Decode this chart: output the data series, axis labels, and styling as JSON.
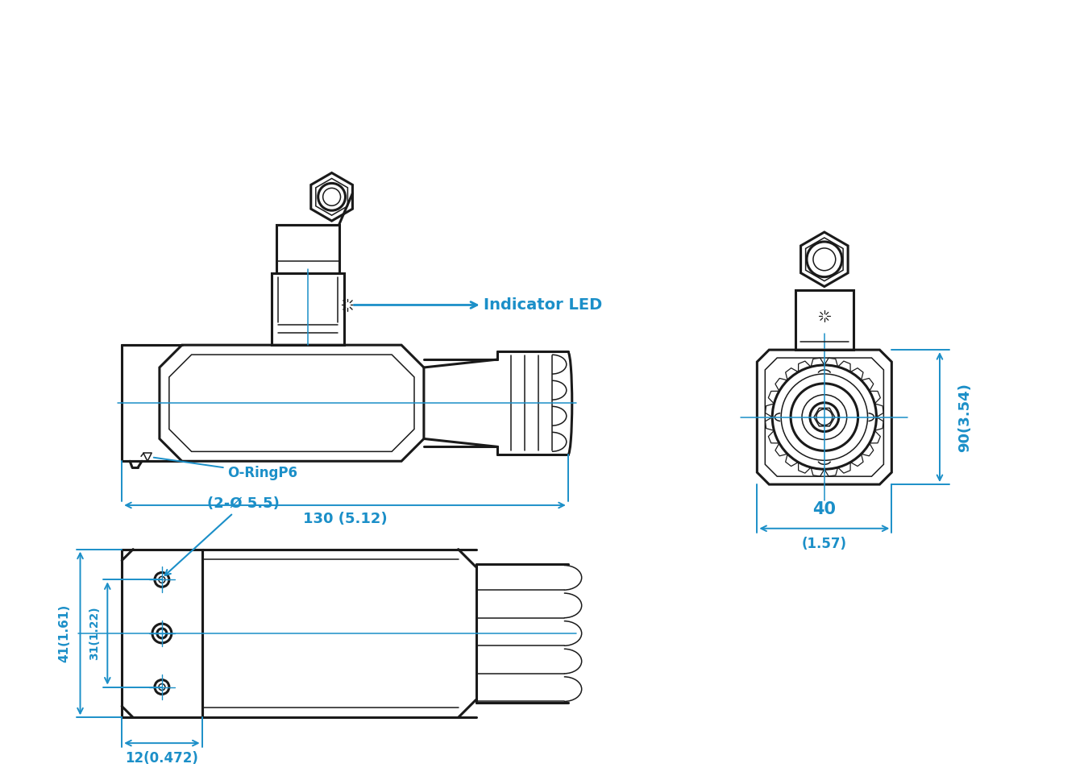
{
  "bg_color": "#FFFFFF",
  "line_color": "#1a1a1a",
  "dim_color": "#1B8FC8",
  "dim_130": "130 (5.12)",
  "dim_40": "40",
  "dim_40b": "(1.57)",
  "dim_90": "90(3.54)",
  "dim_31": "31(1.22)",
  "dim_41": "41(1.61)",
  "dim_12": "12(0.472)",
  "dim_2hole": "(2-Ø 5.5)",
  "label_led": "Indicator LED",
  "label_oring": "O-RingP6"
}
